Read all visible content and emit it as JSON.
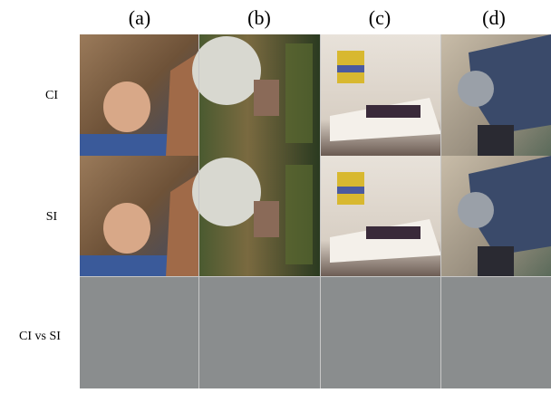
{
  "columns": [
    "(a)",
    "(b)",
    "(c)",
    "(d)"
  ],
  "rows": [
    "CI",
    "SI",
    "CI vs SI"
  ]
}
